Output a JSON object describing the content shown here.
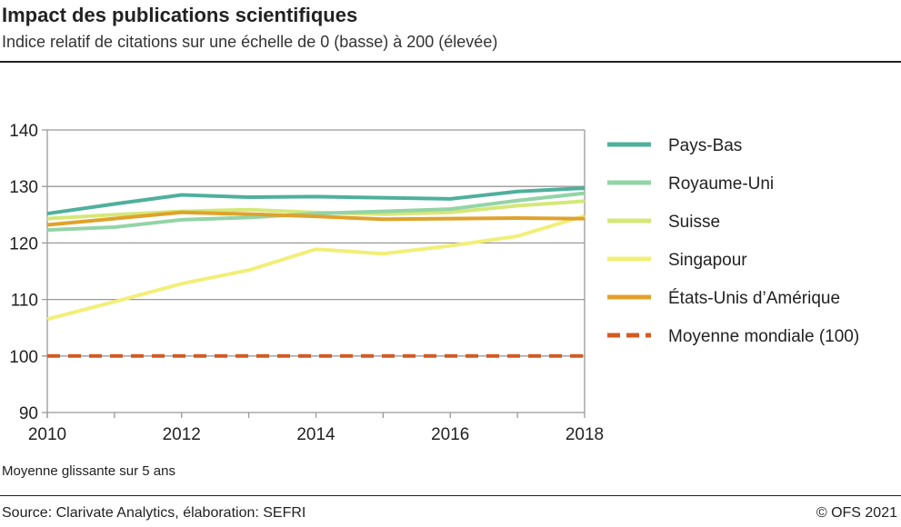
{
  "header": {
    "title": "Impact des publications scientifiques",
    "subtitle": "Indice relatif de citations sur une échelle de 0 (basse) à 200 (élevée)"
  },
  "footer": {
    "note": "Moyenne glissante sur 5 ans",
    "source": "Source: Clarivate Analytics, élaboration: SEFRI",
    "copyright": "© OFS 2021"
  },
  "chart_data": {
    "type": "line",
    "x": [
      2010,
      2011,
      2012,
      2013,
      2014,
      2015,
      2016,
      2017,
      2018
    ],
    "xticks": [
      2010,
      2012,
      2014,
      2016,
      2018
    ],
    "yticks": [
      90,
      100,
      110,
      120,
      130,
      140
    ],
    "ylim": [
      90,
      140
    ],
    "xlim": [
      2010,
      2018
    ],
    "grid": "horizontal",
    "legend": "right",
    "series": [
      {
        "name": "Pays-Bas",
        "color": "#4fb09c",
        "values": [
          125.2,
          126.9,
          128.5,
          128.1,
          128.2,
          128.0,
          127.8,
          129.1,
          129.7
        ]
      },
      {
        "name": "Royaume-Uni",
        "color": "#93d4a6",
        "values": [
          122.3,
          122.8,
          124.1,
          124.5,
          125.2,
          125.6,
          126.0,
          127.5,
          128.8
        ]
      },
      {
        "name": "Suisse",
        "color": "#d5e878",
        "values": [
          124.3,
          125.0,
          125.6,
          125.9,
          125.4,
          125.1,
          125.4,
          126.6,
          127.4
        ]
      },
      {
        "name": "Singapour",
        "color": "#f2ef78",
        "values": [
          106.5,
          109.6,
          112.8,
          115.2,
          118.9,
          118.1,
          119.5,
          121.2,
          124.8
        ]
      },
      {
        "name": "États-Unis d’Amérique",
        "color": "#e0a22c",
        "values": [
          123.2,
          124.3,
          125.4,
          125.1,
          124.7,
          124.2,
          124.3,
          124.4,
          124.3
        ]
      },
      {
        "name": "Moyenne mondiale (100)",
        "color": "#d45a22",
        "dashed": true,
        "values": [
          100,
          100,
          100,
          100,
          100,
          100,
          100,
          100,
          100
        ]
      }
    ]
  }
}
